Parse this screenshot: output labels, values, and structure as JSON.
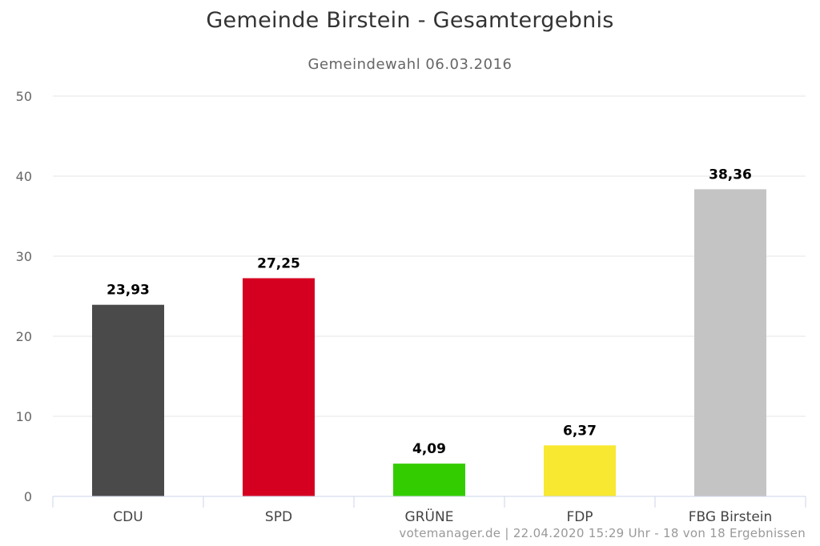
{
  "chart_data": {
    "type": "bar",
    "title": "Gemeinde Birstein - Gesamtergebnis",
    "subtitle": "Gemeindewahl 06.03.2016",
    "categories": [
      "CDU",
      "SPD",
      "GRÜNE",
      "FDP",
      "FBG Birstein"
    ],
    "values": [
      23.93,
      27.25,
      4.09,
      6.37,
      38.36
    ],
    "value_labels": [
      "23,93",
      "27,25",
      "4,09",
      "6,37",
      "38,36"
    ],
    "colors": [
      "#4a4a4a",
      "#d50020",
      "#33cc00",
      "#f8e831",
      "#c4c4c4"
    ],
    "ylim": [
      0,
      50
    ],
    "yticks": [
      0,
      10,
      20,
      30,
      40,
      50
    ],
    "xlabel": "",
    "ylabel": "",
    "grid": true,
    "legend": "none"
  },
  "credits": "votemanager.de | 22.04.2020 15:29 Uhr - 18 von 18 Ergebnissen"
}
